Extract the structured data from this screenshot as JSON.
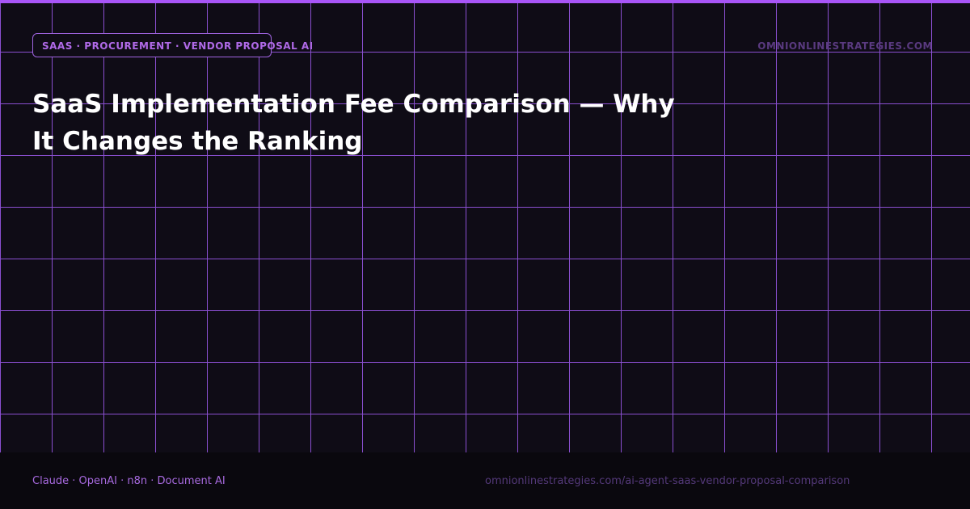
{
  "header": {
    "tag": "SAAS · PROCUREMENT · VENDOR PROPOSAL AI",
    "site": "OMNIONLINESTRATEGIES.COM"
  },
  "title": "SaaS Implementation Fee Comparison — Why It Changes the Ranking",
  "footer": {
    "tools": "Claude · OpenAI · n8n · Document AI",
    "url": "omnionlinestrategies.com/ai-agent-saas-vendor-proposal-comparison"
  }
}
